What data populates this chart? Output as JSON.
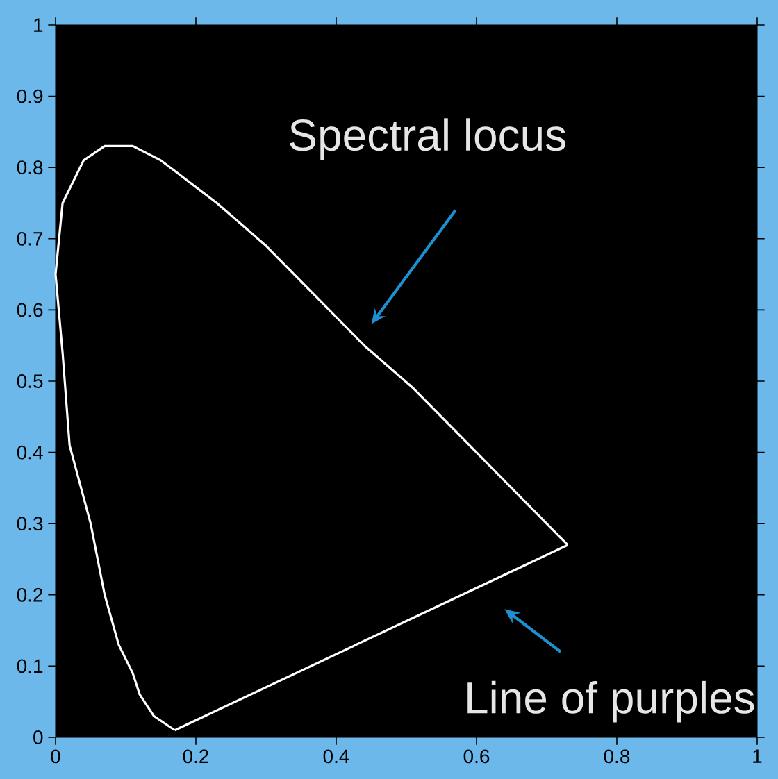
{
  "chart_data": {
    "type": "line",
    "x": [
      0.17,
      0.14,
      0.12,
      0.11,
      0.09,
      0.07,
      0.05,
      0.02,
      0.01,
      0.0,
      0.01,
      0.04,
      0.07,
      0.11,
      0.15,
      0.23,
      0.3,
      0.37,
      0.44,
      0.51,
      0.58,
      0.63,
      0.69,
      0.72,
      0.73
    ],
    "series": [
      {
        "color": "#ffffff",
        "values": [
          0.01,
          0.03,
          0.06,
          0.09,
          0.13,
          0.2,
          0.3,
          0.41,
          0.54,
          0.65,
          0.75,
          0.81,
          0.83,
          0.83,
          0.81,
          0.75,
          0.69,
          0.62,
          0.55,
          0.49,
          0.42,
          0.37,
          0.31,
          0.28,
          0.27
        ]
      },
      {
        "color": "#ffffff",
        "x": [
          0.73,
          0.17
        ],
        "values": [
          0.27,
          0.01
        ]
      }
    ],
    "xlim": [
      0,
      1
    ],
    "ylim": [
      0,
      1
    ],
    "xticks": [
      0,
      0.2,
      0.4,
      0.6,
      0.8,
      1
    ],
    "yticks": [
      0,
      0.1,
      0.2,
      0.3,
      0.4,
      0.5,
      0.6,
      0.7,
      0.8,
      0.9,
      1
    ],
    "annotations": [
      "Spectral locus",
      "Line of purples"
    ],
    "grid": false,
    "marker": "none",
    "line_style": "solid"
  }
}
